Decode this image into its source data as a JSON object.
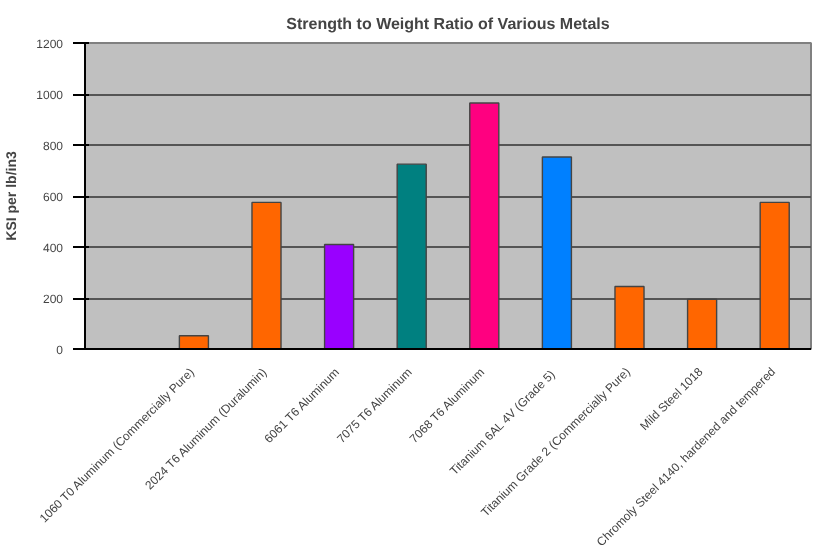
{
  "chart_data": {
    "type": "bar",
    "title": "Strength to Weight Ratio of Various Metals",
    "ylabel": "KSI per lb/in3",
    "categories": [
      null,
      "1060 T0 Aluminum (Commercially Pure)",
      "2024 T6 Aluminum (Duralumin)",
      "6061 T6 Aluminum",
      "7075 T6 Aluminum",
      "7068 T6 Aluminum",
      "Titanium 6AL 4V  (Grade 5)",
      "Titanium Grade 2 (Commercially Pure)",
      "Mild Steel 1018",
      "Chromoly Steel 4140, hardened and tempered"
    ],
    "values": [
      null,
      52,
      575,
      410,
      725,
      965,
      753,
      245,
      195,
      575
    ],
    "colors": [
      "#ff6600",
      "#ff6600",
      "#ff6600",
      "#9900ff",
      "#008080",
      "#ff0080",
      "#0080ff",
      "#ff6600",
      "#ff6600",
      "#ff6600"
    ],
    "ylim": [
      0,
      1200
    ],
    "yticks": [
      0,
      200,
      400,
      600,
      800,
      1000,
      1200
    ],
    "grid": "y"
  }
}
